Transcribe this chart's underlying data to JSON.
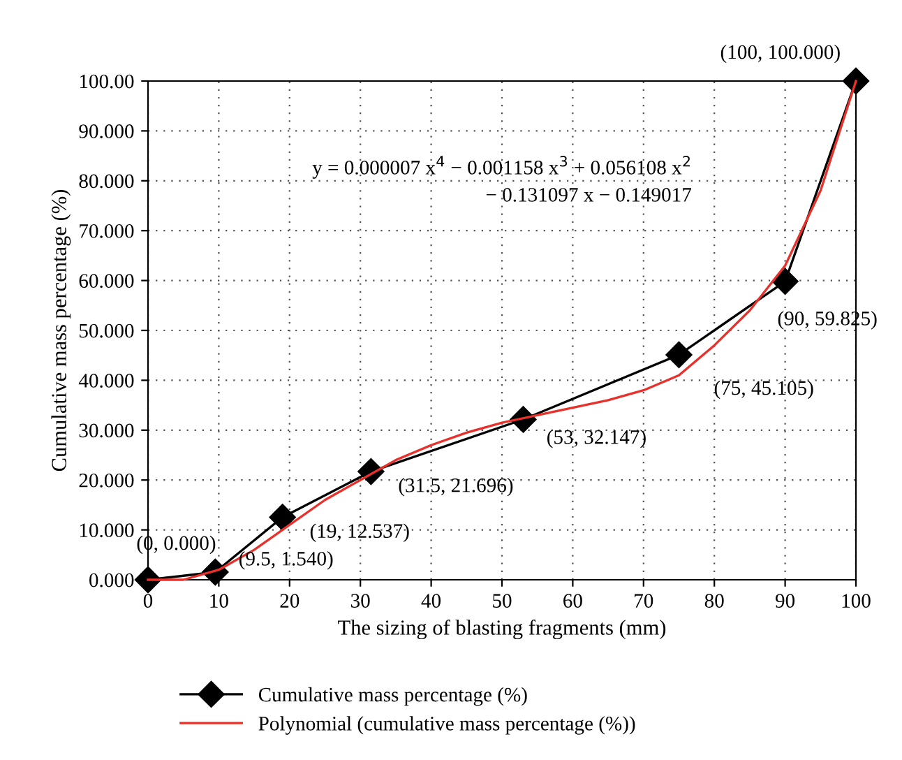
{
  "chart_data": {
    "type": "line",
    "xlabel": "The sizing of blasting fragments (mm)",
    "ylabel": "Cumulative mass percentage (%)",
    "xlim": [
      0,
      100
    ],
    "xticks": [
      0,
      10,
      20,
      30,
      40,
      50,
      60,
      70,
      80,
      90,
      100
    ],
    "ylim": [
      0,
      100
    ],
    "yticks": [
      {
        "value": 0,
        "label": "0.000"
      },
      {
        "value": 10,
        "label": "10.000"
      },
      {
        "value": 20,
        "label": "20.000"
      },
      {
        "value": 30,
        "label": "30.000"
      },
      {
        "value": 40,
        "label": "40.000"
      },
      {
        "value": 50,
        "label": "50.000"
      },
      {
        "value": 60,
        "label": "60.000"
      },
      {
        "value": 70,
        "label": "70.000"
      },
      {
        "value": 80,
        "label": "80.000"
      },
      {
        "value": 90,
        "label": "90.000"
      },
      {
        "value": 100,
        "label": "100.00"
      }
    ],
    "grid": true,
    "legend": "bottom",
    "series": [
      {
        "name": "Cumulative mass percentage (%)",
        "color": "#000000",
        "marker": "diamond",
        "x": [
          0,
          9.5,
          19,
          31.5,
          53,
          75,
          90,
          100
        ],
        "values": [
          0,
          1.54,
          12.537,
          21.696,
          32.147,
          45.105,
          59.825,
          100
        ]
      },
      {
        "name": "Polynomial (cumulative mass percentage (%))",
        "color": "#e8312a",
        "marker": "none",
        "x": [
          0,
          5,
          10,
          15,
          20,
          25,
          30,
          35,
          40,
          45,
          50,
          55,
          60,
          65,
          70,
          75,
          80,
          85,
          90,
          95,
          100
        ],
        "values": [
          0,
          0,
          2,
          6,
          11,
          16,
          20,
          24,
          27,
          29.5,
          31.5,
          33,
          34.5,
          36,
          38,
          41,
          47,
          54,
          63,
          78,
          100
        ]
      }
    ],
    "annotations": [
      {
        "text": "(0, 0.000)",
        "x": 0,
        "y": 0
      },
      {
        "text": "(9.5, 1.540)",
        "x": 9.5,
        "y": 1.54
      },
      {
        "text": "(19, 12.537)",
        "x": 19,
        "y": 12.537
      },
      {
        "text": "(31.5, 21.696)",
        "x": 31.5,
        "y": 21.696
      },
      {
        "text": "(53, 32.147)",
        "x": 53,
        "y": 32.147
      },
      {
        "text": "(75, 45.105)",
        "x": 75,
        "y": 45.105
      },
      {
        "text": "(90, 59.825)",
        "x": 90,
        "y": 59.825
      },
      {
        "text": "(100, 100.000)",
        "x": 100,
        "y": 100
      },
      "y = 0.000007 x$^{4}$ − 0.001158 x$^{3}$ + 0.056108 x$^{2}$\n− 0.131097 x − 0.149017"
    ]
  }
}
